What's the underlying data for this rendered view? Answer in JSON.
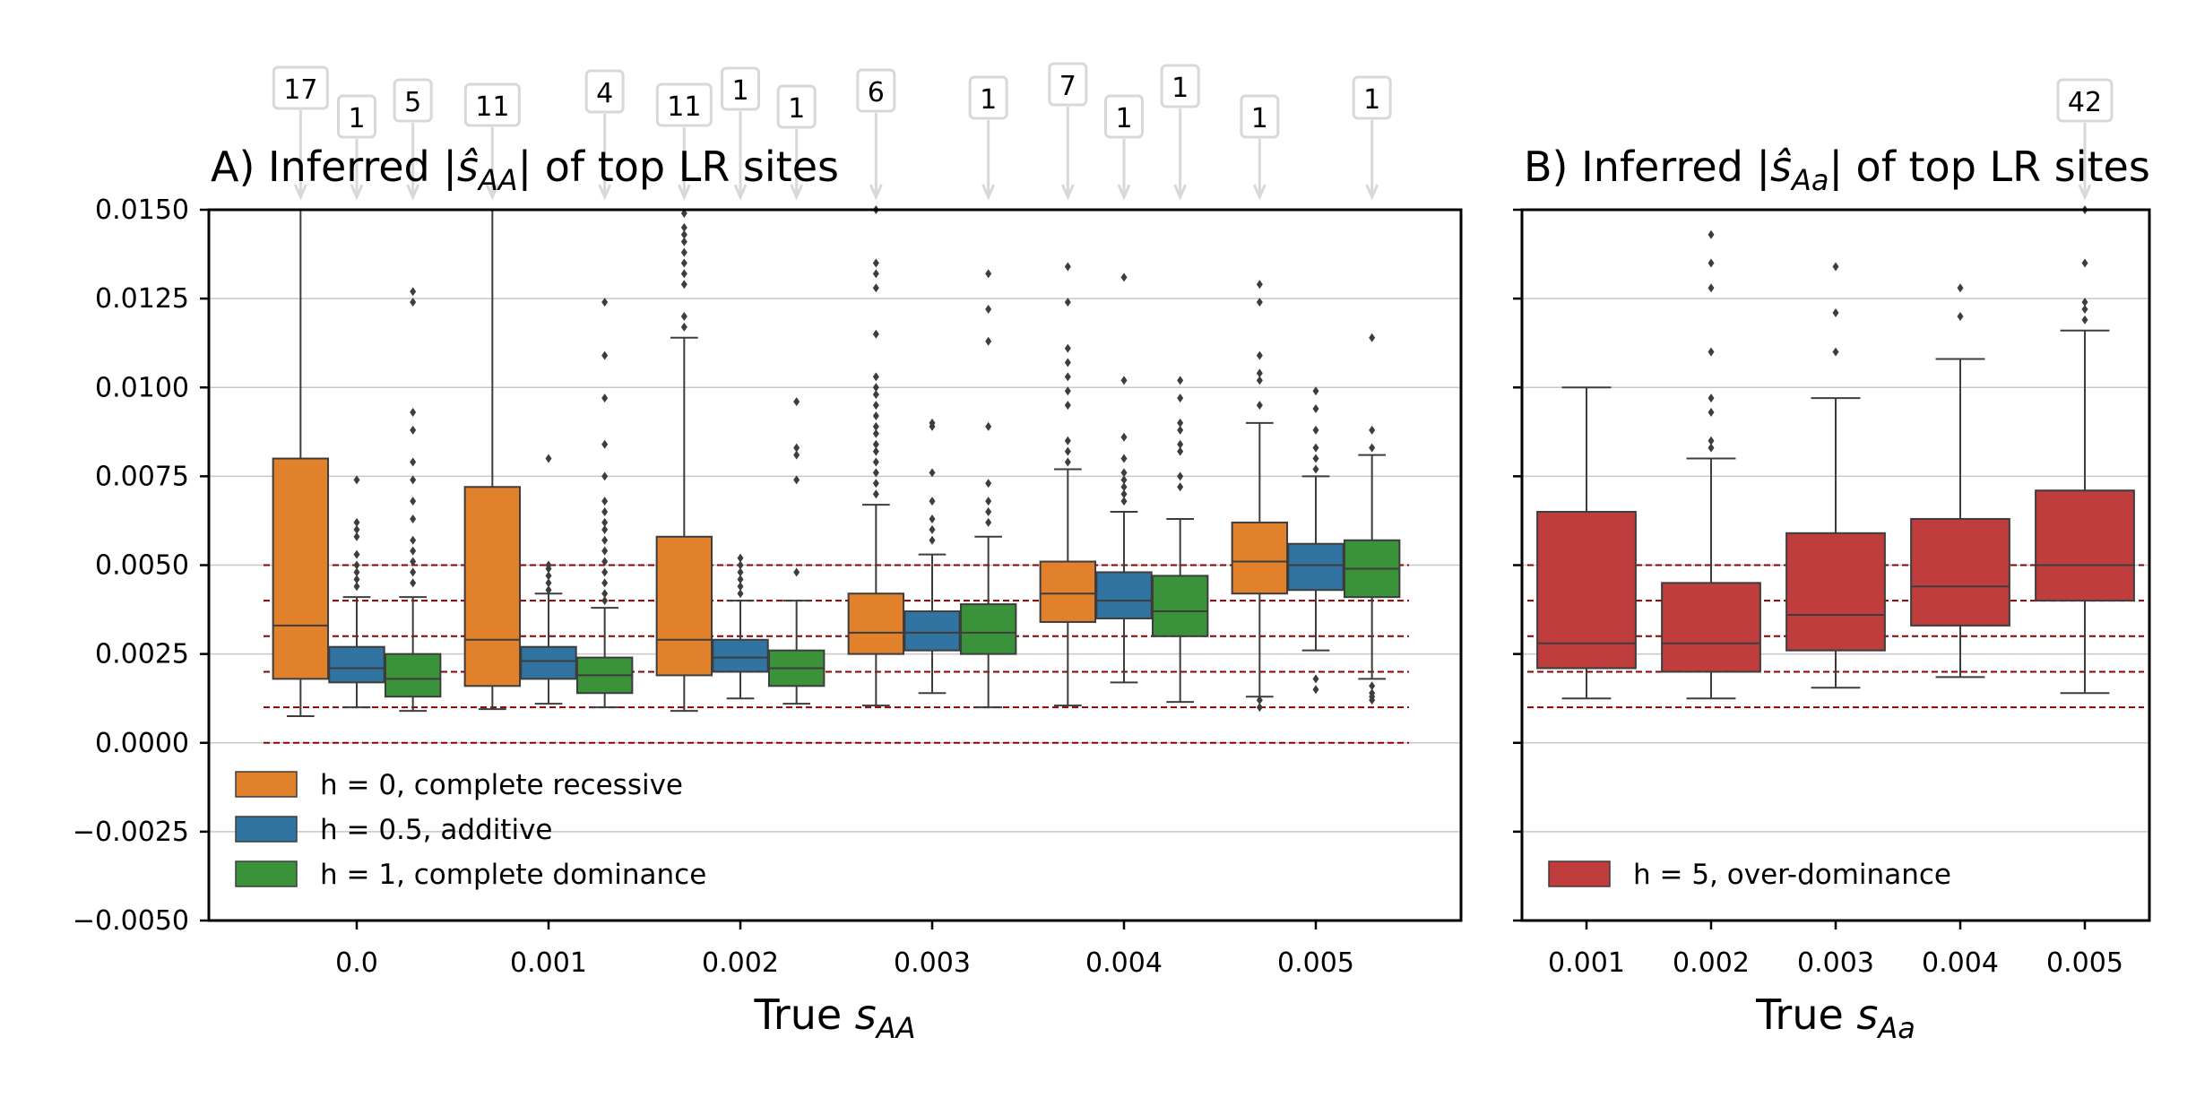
{
  "chart_data": [
    {
      "panel": "A",
      "type": "box",
      "title_prefix": "A) Inferred  |",
      "title_symbol": "ŝ",
      "title_sub": "AA",
      "title_suffix": "| of top LR sites",
      "xlabel_text": "True ",
      "xlabel_symbol": "s",
      "xlabel_sub": "AA",
      "ylim": [
        -0.005,
        0.015
      ],
      "yticks": [
        "0.0150",
        "0.0125",
        "0.0100",
        "0.0075",
        "0.0050",
        "0.0025",
        "0.0000",
        "−0.0025",
        "−0.0050"
      ],
      "ytick_values": [
        0.015,
        0.0125,
        0.01,
        0.0075,
        0.005,
        0.0025,
        0.0,
        -0.0025,
        -0.005
      ],
      "categories": [
        "0.0",
        "0.001",
        "0.002",
        "0.003",
        "0.004",
        "0.005"
      ],
      "reference_lines": [
        0.0,
        0.001,
        0.002,
        0.003,
        0.004,
        0.005
      ],
      "grid": "horizontal",
      "legend_position": "lower-left",
      "series": [
        {
          "name": "h = 0, complete recessive",
          "color": "#e1812c",
          "boxes": [
            {
              "q1": 0.0018,
              "median": 0.0033,
              "q3": 0.008,
              "whisker_low": 0.00075,
              "whisker_high": 0.015,
              "outliers": [],
              "count_above": 17
            },
            {
              "q1": 0.0016,
              "median": 0.0029,
              "q3": 0.0072,
              "whisker_low": 0.00095,
              "whisker_high": 0.015,
              "outliers": [],
              "count_above": 11
            },
            {
              "q1": 0.0019,
              "median": 0.0029,
              "q3": 0.0058,
              "whisker_low": 0.0009,
              "whisker_high": 0.0114,
              "outliers": [
                0.0117,
                0.012,
                0.0129,
                0.0132,
                0.0135,
                0.0138,
                0.0141,
                0.0143,
                0.0145,
                0.0149
              ],
              "count_above": 11
            },
            {
              "q1": 0.0025,
              "median": 0.0031,
              "q3": 0.0042,
              "whisker_low": 0.00105,
              "whisker_high": 0.0067,
              "outliers": [
                0.007,
                0.0073,
                0.0076,
                0.0079,
                0.0082,
                0.0084,
                0.0087,
                0.0089,
                0.0092,
                0.0095,
                0.0098,
                0.01,
                0.0103,
                0.0115,
                0.0128,
                0.0132,
                0.0135,
                0.015
              ],
              "count_above": 6
            },
            {
              "q1": 0.0034,
              "median": 0.0042,
              "q3": 0.0051,
              "whisker_low": 0.00105,
              "whisker_high": 0.0077,
              "outliers": [
                0.0079,
                0.0082,
                0.0085,
                0.0095,
                0.0099,
                0.0103,
                0.0107,
                0.0111,
                0.0124,
                0.0134
              ],
              "count_above": 7
            },
            {
              "q1": 0.0042,
              "median": 0.0051,
              "q3": 0.0062,
              "whisker_low": 0.0013,
              "whisker_high": 0.009,
              "outliers": [
                0.001,
                0.0012,
                0.0095,
                0.0102,
                0.0104,
                0.0109,
                0.0124,
                0.0129
              ],
              "count_above": 1
            }
          ]
        },
        {
          "name": "h = 0.5, additive",
          "color": "#3274a1",
          "boxes": [
            {
              "q1": 0.0017,
              "median": 0.0021,
              "q3": 0.0027,
              "whisker_low": 0.001,
              "whisker_high": 0.0041,
              "outliers": [
                0.0044,
                0.0046,
                0.0048,
                0.005,
                0.0053,
                0.0058,
                0.006,
                0.0062,
                0.0074
              ],
              "count_above": 1
            },
            {
              "q1": 0.0018,
              "median": 0.0023,
              "q3": 0.0027,
              "whisker_low": 0.0011,
              "whisker_high": 0.0042,
              "outliers": [
                0.0043,
                0.0045,
                0.0047,
                0.0049,
                0.005,
                0.008
              ],
              "count_above": 0
            },
            {
              "q1": 0.002,
              "median": 0.0024,
              "q3": 0.0029,
              "whisker_low": 0.00125,
              "whisker_high": 0.004,
              "outliers": [
                0.0042,
                0.0044,
                0.0046,
                0.0048,
                0.005,
                0.0052
              ],
              "count_above": 1
            },
            {
              "q1": 0.0026,
              "median": 0.0031,
              "q3": 0.0037,
              "whisker_low": 0.0014,
              "whisker_high": 0.0053,
              "outliers": [
                0.0057,
                0.006,
                0.0063,
                0.0068,
                0.0076,
                0.0089,
                0.009
              ],
              "count_above": 0
            },
            {
              "q1": 0.0035,
              "median": 0.004,
              "q3": 0.0048,
              "whisker_low": 0.0017,
              "whisker_high": 0.0065,
              "outliers": [
                0.0068,
                0.007,
                0.0072,
                0.0074,
                0.0076,
                0.008,
                0.0086,
                0.0102,
                0.0131
              ],
              "count_above": 1
            },
            {
              "q1": 0.0043,
              "median": 0.005,
              "q3": 0.0056,
              "whisker_low": 0.0026,
              "whisker_high": 0.0075,
              "outliers": [
                0.0015,
                0.0018,
                0.0077,
                0.008,
                0.0083,
                0.0088,
                0.0094,
                0.0099
              ],
              "count_above": 0
            }
          ]
        },
        {
          "name": "h = 1, complete dominance",
          "color": "#3a923a",
          "boxes": [
            {
              "q1": 0.0013,
              "median": 0.0018,
              "q3": 0.0025,
              "whisker_low": 0.0009,
              "whisker_high": 0.0041,
              "outliers": [
                0.0045,
                0.0048,
                0.0051,
                0.0054,
                0.0057,
                0.0063,
                0.0068,
                0.0074,
                0.0079,
                0.0088,
                0.0093,
                0.0124,
                0.0127
              ],
              "count_above": 5
            },
            {
              "q1": 0.0014,
              "median": 0.0019,
              "q3": 0.0024,
              "whisker_low": 0.001,
              "whisker_high": 0.0038,
              "outliers": [
                0.004,
                0.0042,
                0.0045,
                0.0048,
                0.0051,
                0.0054,
                0.0057,
                0.006,
                0.0062,
                0.0065,
                0.0068,
                0.0075,
                0.0084,
                0.0097,
                0.0109,
                0.0124
              ],
              "count_above": 4
            },
            {
              "q1": 0.0016,
              "median": 0.0021,
              "q3": 0.0026,
              "whisker_low": 0.0011,
              "whisker_high": 0.004,
              "outliers": [
                0.0048,
                0.0074,
                0.0081,
                0.0083,
                0.0096
              ],
              "count_above": 1
            },
            {
              "q1": 0.0025,
              "median": 0.0031,
              "q3": 0.0039,
              "whisker_low": 0.001,
              "whisker_high": 0.0058,
              "outliers": [
                0.0062,
                0.0065,
                0.0068,
                0.0073,
                0.0089,
                0.0113,
                0.0122,
                0.0132
              ],
              "count_above": 1
            },
            {
              "q1": 0.003,
              "median": 0.0037,
              "q3": 0.0047,
              "whisker_low": 0.00115,
              "whisker_high": 0.0063,
              "outliers": [
                0.0072,
                0.0075,
                0.0082,
                0.0084,
                0.0088,
                0.009,
                0.0097,
                0.0102
              ],
              "count_above": 1
            },
            {
              "q1": 0.0041,
              "median": 0.0049,
              "q3": 0.0057,
              "whisker_low": 0.0018,
              "whisker_high": 0.0081,
              "outliers": [
                0.0012,
                0.0013,
                0.0014,
                0.0016,
                0.0083,
                0.0088,
                0.0114
              ],
              "count_above": 1
            }
          ]
        }
      ]
    },
    {
      "panel": "B",
      "type": "box",
      "title_prefix": "B) Inferred  |",
      "title_symbol": "ŝ",
      "title_sub": "Aa",
      "title_suffix": "| of top LR sites",
      "xlabel_text": "True ",
      "xlabel_symbol": "s",
      "xlabel_sub": "Aa",
      "ylim": [
        -0.005,
        0.015
      ],
      "yticks_shared": true,
      "categories": [
        "0.001",
        "0.002",
        "0.003",
        "0.004",
        "0.005"
      ],
      "reference_lines": [
        0.001,
        0.002,
        0.003,
        0.004,
        0.005
      ],
      "grid": "horizontal",
      "legend_position": "lower-left",
      "series": [
        {
          "name": "h = 5, over-dominance",
          "color": "#c03d3e",
          "boxes": [
            {
              "q1": 0.0021,
              "median": 0.0028,
              "q3": 0.0065,
              "whisker_low": 0.00125,
              "whisker_high": 0.01,
              "outliers": [],
              "count_above": 0
            },
            {
              "q1": 0.002,
              "median": 0.0028,
              "q3": 0.0045,
              "whisker_low": 0.00125,
              "whisker_high": 0.008,
              "outliers": [
                0.0083,
                0.0085,
                0.0093,
                0.0097,
                0.011,
                0.0128,
                0.0135,
                0.0143
              ],
              "count_above": 0
            },
            {
              "q1": 0.0026,
              "median": 0.0036,
              "q3": 0.0059,
              "whisker_low": 0.00155,
              "whisker_high": 0.0097,
              "outliers": [
                0.011,
                0.0121,
                0.0134
              ],
              "count_above": 0
            },
            {
              "q1": 0.0033,
              "median": 0.0044,
              "q3": 0.0063,
              "whisker_low": 0.00185,
              "whisker_high": 0.0108,
              "outliers": [
                0.012,
                0.0128
              ],
              "count_above": 0
            },
            {
              "q1": 0.004,
              "median": 0.005,
              "q3": 0.0071,
              "whisker_low": 0.0014,
              "whisker_high": 0.0116,
              "outliers": [
                0.0119,
                0.0122,
                0.0124,
                0.0135,
                0.015
              ],
              "count_above": 42
            }
          ]
        }
      ]
    }
  ]
}
